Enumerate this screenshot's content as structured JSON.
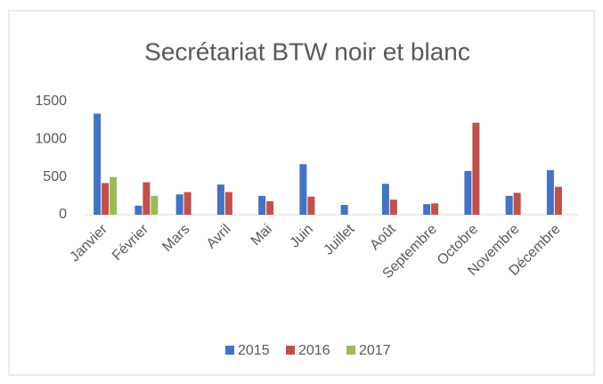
{
  "chart_data": {
    "type": "bar",
    "title": "Secrétariat BTW noir et blanc",
    "categories": [
      "Janvier",
      "Février",
      "Mars",
      "Avril",
      "Mai",
      "Juin",
      "Juillet",
      "Août",
      "Septembre",
      "Octobre",
      "Novembre",
      "Décembre"
    ],
    "series": [
      {
        "name": "2015",
        "color": "#4472c4",
        "values": [
          1340,
          120,
          270,
          400,
          250,
          670,
          130,
          410,
          140,
          580,
          250,
          590
        ]
      },
      {
        "name": "2016",
        "color": "#c0504d",
        "values": [
          420,
          430,
          300,
          300,
          180,
          240,
          null,
          200,
          150,
          1220,
          290,
          370
        ]
      },
      {
        "name": "2017",
        "color": "#9bbb59",
        "values": [
          500,
          250,
          null,
          null,
          null,
          null,
          null,
          null,
          null,
          null,
          null,
          null
        ]
      }
    ],
    "ylim": [
      0,
      1500
    ],
    "yticks": [
      0,
      500,
      1000,
      1500
    ],
    "grid": false,
    "legend": "bottom"
  }
}
